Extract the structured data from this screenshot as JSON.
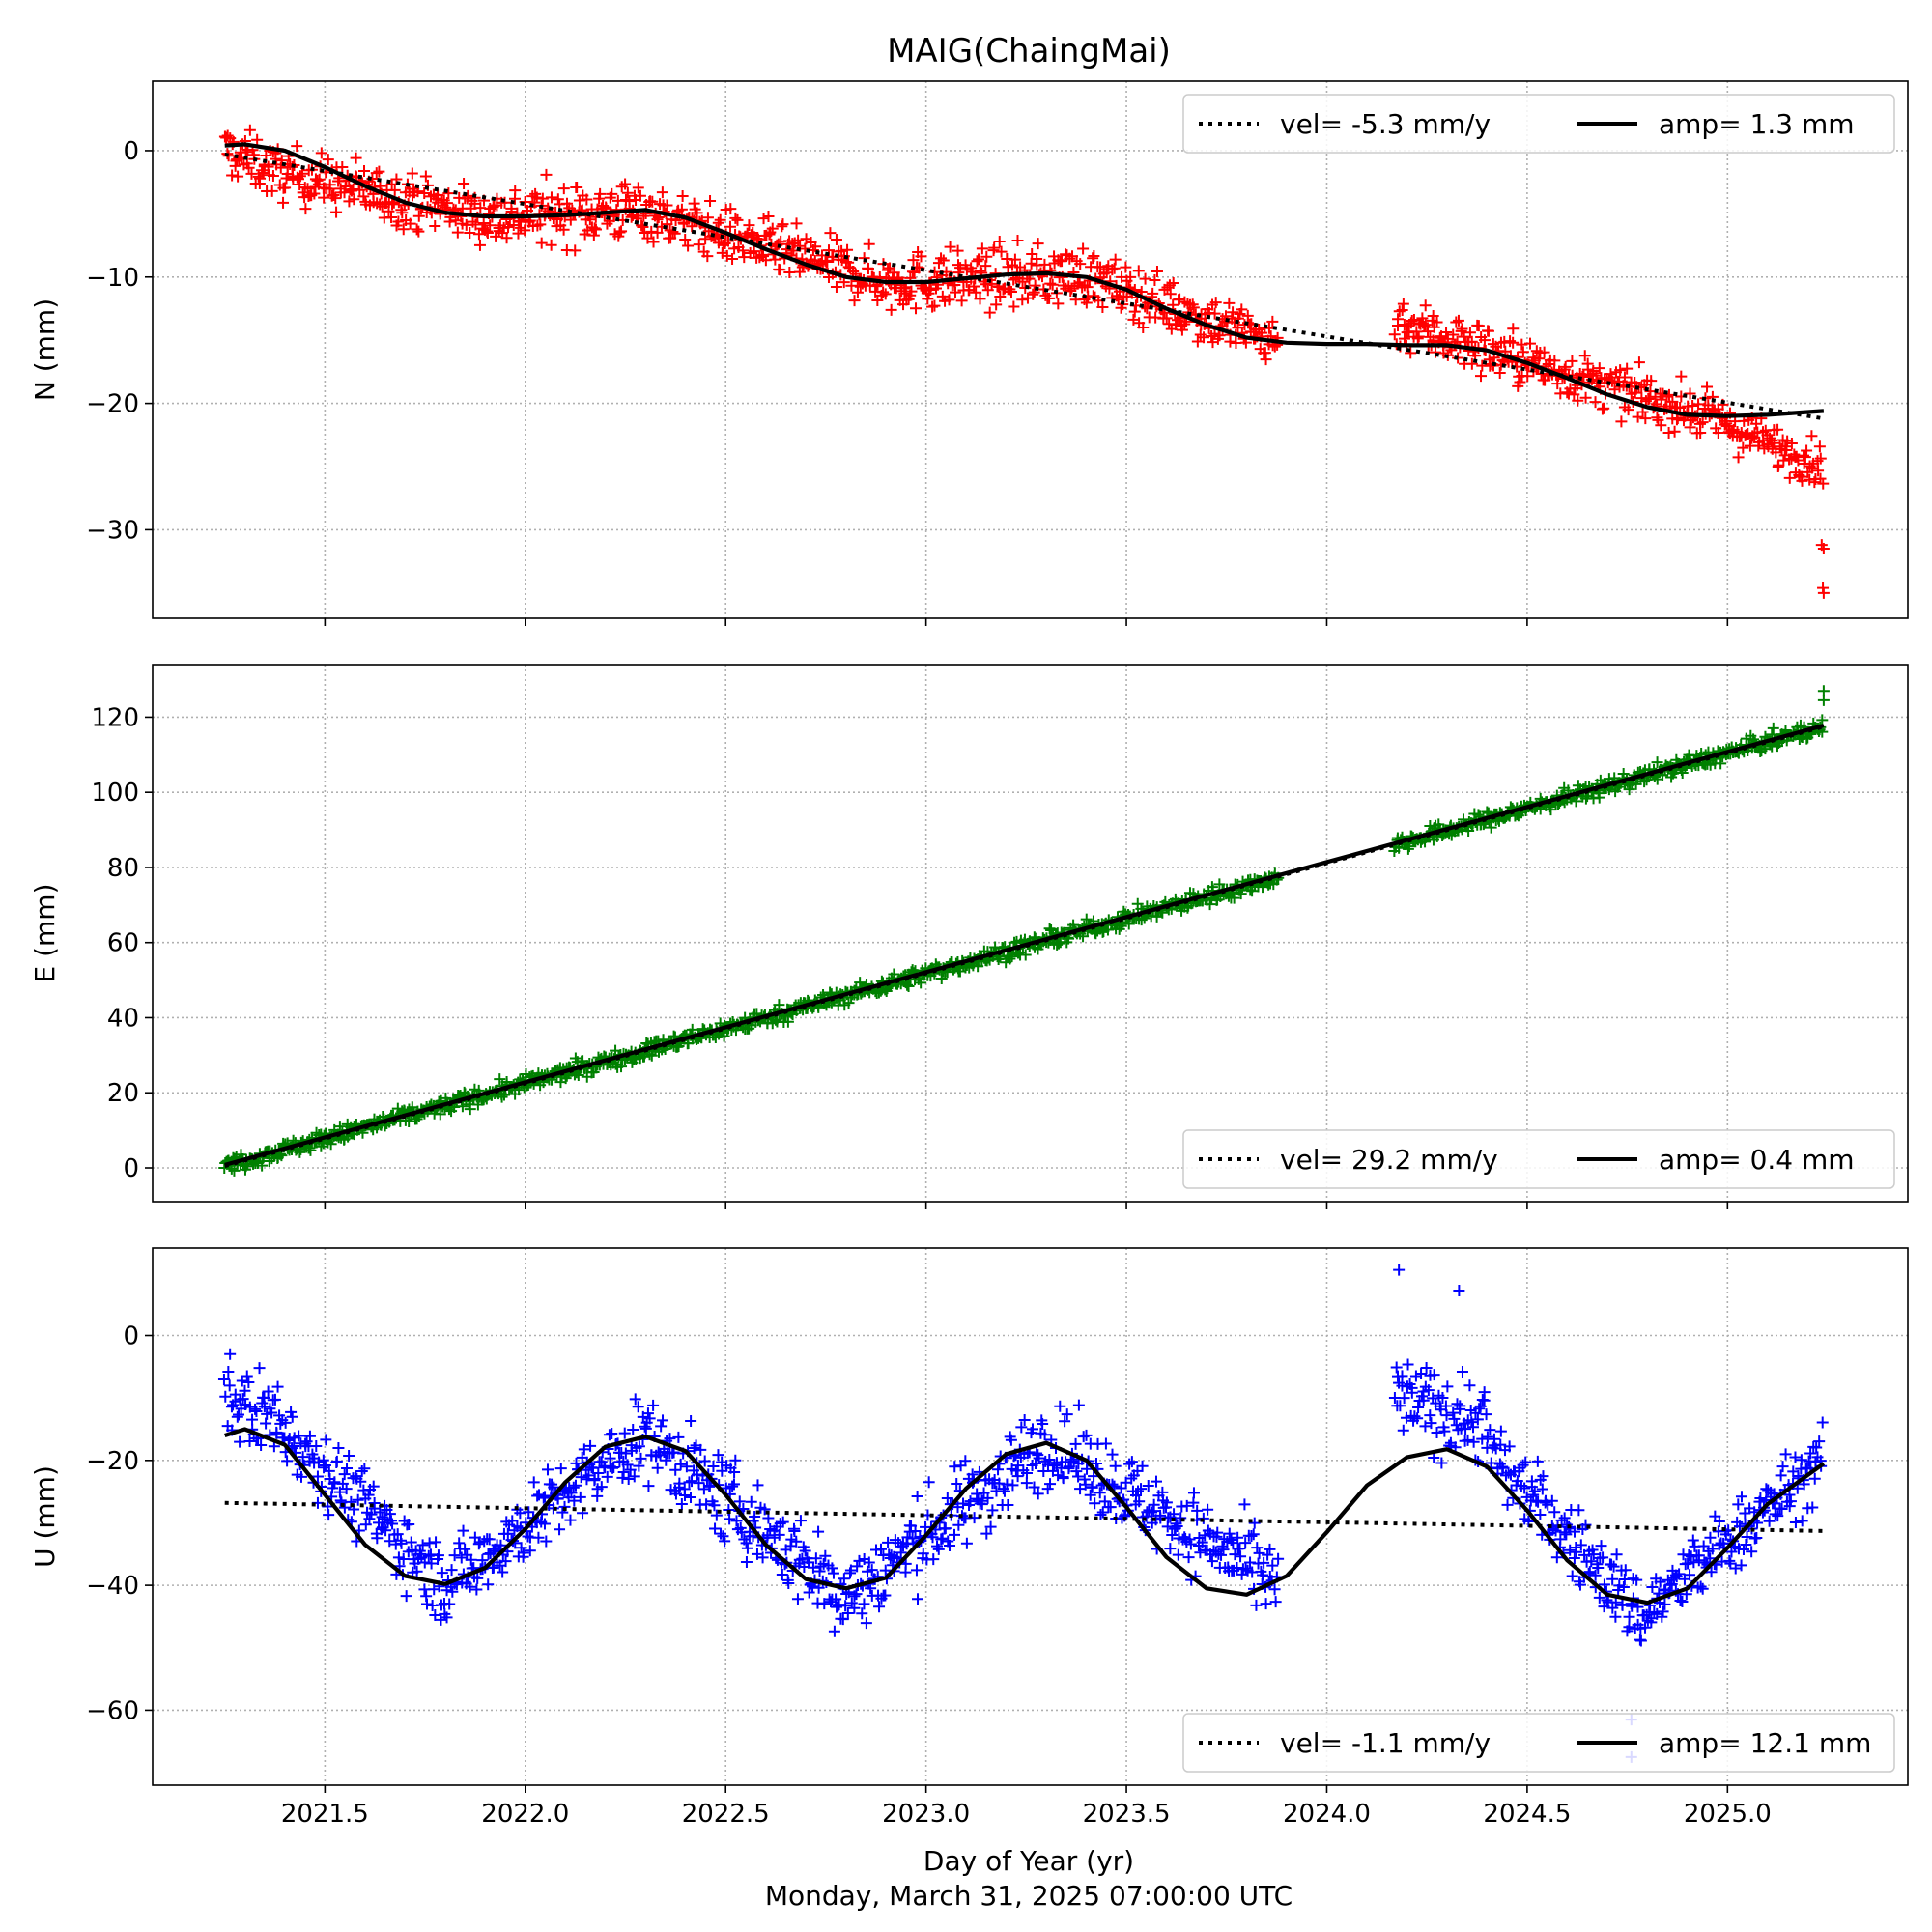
{
  "chart_data": {
    "type": "scatter",
    "title": "MAIG(ChaingMai)",
    "xlabel": "Day of Year (yr)",
    "footer": "Monday, March 31, 2025 07:00:00 UTC",
    "xlim": [
      2021.07,
      2025.45
    ],
    "x_ticks": [
      2021.5,
      2022.0,
      2022.5,
      2023.0,
      2023.5,
      2024.0,
      2024.5,
      2025.0
    ],
    "x_tick_labels": [
      "2021.5",
      "2022.0",
      "2022.5",
      "2023.0",
      "2023.5",
      "2024.0",
      "2024.5",
      "2025.0"
    ],
    "grid": true,
    "data_gap": [
      2023.88,
      2024.17
    ],
    "panels": [
      {
        "key": "n",
        "ylabel": "N (mm)",
        "ylim": [
          -37,
          5.5
        ],
        "y_ticks": [
          0,
          -10,
          -20,
          -30
        ],
        "y_tick_labels": [
          "0",
          "−10",
          "−20",
          "−30"
        ],
        "marker_color": "#ff0000",
        "series": [
          {
            "name": "vel= -5.3 mm/y",
            "style": "dotted",
            "start": [
              2021.25,
              -0.3
            ],
            "end": [
              2025.24,
              -21.2
            ]
          },
          {
            "name": "amp= 1.3 mm",
            "style": "solid",
            "x": [
              2021.25,
              2021.3,
              2021.4,
              2021.5,
              2021.6,
              2021.7,
              2021.8,
              2021.9,
              2022.0,
              2022.1,
              2022.2,
              2022.3,
              2022.4,
              2022.5,
              2022.6,
              2022.7,
              2022.8,
              2022.9,
              2023.0,
              2023.1,
              2023.2,
              2023.3,
              2023.4,
              2023.5,
              2023.6,
              2023.7,
              2023.8,
              2023.9,
              2024.0,
              2024.1,
              2024.2,
              2024.3,
              2024.4,
              2024.5,
              2024.6,
              2024.7,
              2024.8,
              2024.9,
              2025.0,
              2025.1,
              2025.24
            ],
            "y": [
              0.4,
              0.5,
              0.0,
              -1.3,
              -2.8,
              -4.1,
              -4.9,
              -5.2,
              -5.2,
              -5.1,
              -4.9,
              -4.7,
              -5.3,
              -6.5,
              -7.8,
              -9.0,
              -10.0,
              -10.4,
              -10.4,
              -10.1,
              -9.8,
              -9.7,
              -10.0,
              -11.0,
              -12.5,
              -13.8,
              -14.8,
              -15.2,
              -15.3,
              -15.3,
              -15.4,
              -15.4,
              -15.8,
              -16.8,
              -18.0,
              -19.3,
              -20.3,
              -20.9,
              -21.0,
              -20.9,
              -20.6
            ]
          },
          {
            "name": "observations",
            "type": "scatter",
            "segments": [
              {
                "x0": 2021.25,
                "x1": 2021.35,
                "y0": 0.0,
                "y1": -1.2,
                "spread": 2.5
              },
              {
                "x0": 2021.35,
                "x1": 2021.9,
                "y0": -1.5,
                "y1": -5.2,
                "spread": 2.5
              },
              {
                "x0": 2021.9,
                "x1": 2022.3,
                "y0": -5.2,
                "y1": -4.7,
                "spread": 2.8
              },
              {
                "x0": 2022.3,
                "x1": 2022.9,
                "y0": -4.8,
                "y1": -10.4,
                "spread": 2.5
              },
              {
                "x0": 2022.9,
                "x1": 2023.4,
                "y0": -10.4,
                "y1": -9.8,
                "spread": 2.8
              },
              {
                "x0": 2023.4,
                "x1": 2023.88,
                "y0": -10.0,
                "y1": -15.2,
                "spread": 2.5
              },
              {
                "x0": 2024.17,
                "x1": 2024.5,
                "y0": -13.5,
                "y1": -16.8,
                "spread": 2.5
              },
              {
                "x0": 2024.5,
                "x1": 2025.0,
                "y0": -16.8,
                "y1": -21.5,
                "spread": 2.2
              },
              {
                "x0": 2025.0,
                "x1": 2025.24,
                "y0": -21.8,
                "y1": -25.0,
                "spread": 2.0
              }
            ],
            "extra_points": [
              [
                2025.24,
                -31.5
              ],
              [
                2025.24,
                -35.0
              ],
              [
                2025.235,
                -31.2
              ],
              [
                2025.238,
                -34.6
              ]
            ]
          }
        ],
        "legend_loc": "upper right"
      },
      {
        "key": "e",
        "ylabel": "E (mm)",
        "ylim": [
          -9,
          134
        ],
        "y_ticks": [
          0,
          20,
          40,
          60,
          80,
          100,
          120
        ],
        "y_tick_labels": [
          "0",
          "20",
          "40",
          "60",
          "80",
          "100",
          "120"
        ],
        "marker_color": "#008000",
        "series": [
          {
            "name": "vel= 29.2 mm/y",
            "style": "dotted",
            "start": [
              2021.25,
              0.5
            ],
            "end": [
              2025.24,
              117.5
            ]
          },
          {
            "name": "amp= 0.4 mm",
            "style": "solid",
            "start": [
              2021.25,
              0.8
            ],
            "end": [
              2025.24,
              117.8
            ]
          },
          {
            "name": "observations",
            "type": "scatter",
            "segments": [
              {
                "x0": 2021.25,
                "x1": 2023.88,
                "y0": 0.5,
                "y1": 77.5,
                "spread": 2.6
              },
              {
                "x0": 2024.17,
                "x1": 2025.24,
                "y0": 86.0,
                "y1": 117.5,
                "spread": 2.6
              }
            ],
            "extra_points": [
              [
                2025.24,
                124.5
              ],
              [
                2025.24,
                127.0
              ]
            ]
          }
        ],
        "legend_loc": "lower right"
      },
      {
        "key": "u",
        "ylabel": "U (mm)",
        "ylim": [
          -72,
          14
        ],
        "y_ticks": [
          0,
          -20,
          -40,
          -60
        ],
        "y_tick_labels": [
          "0",
          "−20",
          "−40",
          "−60"
        ],
        "marker_color": "#0000ff",
        "series": [
          {
            "name": "vel= -1.1 mm/y",
            "style": "dotted",
            "start": [
              2021.25,
              -26.8
            ],
            "end": [
              2025.24,
              -31.3
            ]
          },
          {
            "name": "amp= 12.1 mm",
            "style": "solid",
            "x": [
              2021.25,
              2021.3,
              2021.4,
              2021.5,
              2021.6,
              2021.7,
              2021.8,
              2021.9,
              2022.0,
              2022.1,
              2022.2,
              2022.3,
              2022.4,
              2022.5,
              2022.6,
              2022.7,
              2022.8,
              2022.9,
              2023.0,
              2023.1,
              2023.2,
              2023.3,
              2023.4,
              2023.5,
              2023.6,
              2023.7,
              2023.8,
              2023.9,
              2024.0,
              2024.1,
              2024.2,
              2024.3,
              2024.4,
              2024.5,
              2024.6,
              2024.7,
              2024.8,
              2024.9,
              2025.0,
              2025.1,
              2025.24
            ],
            "y": [
              -16.0,
              -15.0,
              -17.5,
              -25.5,
              -33.5,
              -38.5,
              -39.8,
              -37.2,
              -31.0,
              -23.5,
              -17.8,
              -16.2,
              -18.5,
              -25.5,
              -33.5,
              -39.0,
              -40.5,
              -38.8,
              -32.0,
              -24.5,
              -19.0,
              -17.2,
              -20.0,
              -27.5,
              -35.5,
              -40.5,
              -41.5,
              -38.5,
              -31.5,
              -24.0,
              -19.5,
              -18.2,
              -21.0,
              -28.0,
              -36.0,
              -41.5,
              -42.8,
              -40.5,
              -34.0,
              -27.0,
              -20.5
            ]
          },
          {
            "name": "observations",
            "type": "scatter",
            "segments": [
              {
                "x0": 2021.25,
                "x1": 2021.4,
                "y0": -10.0,
                "y1": -14.0,
                "spread": 8.0
              },
              {
                "x0": 2021.4,
                "x1": 2021.8,
                "y0": -15.0,
                "y1": -40.0,
                "spread": 7.0
              },
              {
                "x0": 2021.8,
                "x1": 2022.3,
                "y0": -40.0,
                "y1": -16.0,
                "spread": 7.0
              },
              {
                "x0": 2022.3,
                "x1": 2022.8,
                "y0": -16.0,
                "y1": -42.0,
                "spread": 8.0
              },
              {
                "x0": 2022.8,
                "x1": 2023.3,
                "y0": -42.0,
                "y1": -17.0,
                "spread": 8.0
              },
              {
                "x0": 2023.3,
                "x1": 2023.88,
                "y0": -17.0,
                "y1": -40.0,
                "spread": 7.5
              },
              {
                "x0": 2024.17,
                "x1": 2024.4,
                "y0": -10.0,
                "y1": -14.0,
                "spread": 8.0
              },
              {
                "x0": 2024.4,
                "x1": 2024.8,
                "y0": -18.0,
                "y1": -46.0,
                "spread": 7.0
              },
              {
                "x0": 2024.8,
                "x1": 2025.24,
                "y0": -44.0,
                "y1": -20.0,
                "spread": 6.5
              }
            ],
            "extra_points": [
              [
                2024.18,
                10.5
              ],
              [
                2024.33,
                7.2
              ],
              [
                2024.76,
                -61.5
              ],
              [
                2024.76,
                -67.5
              ]
            ]
          }
        ],
        "legend_loc": "lower right"
      }
    ]
  }
}
